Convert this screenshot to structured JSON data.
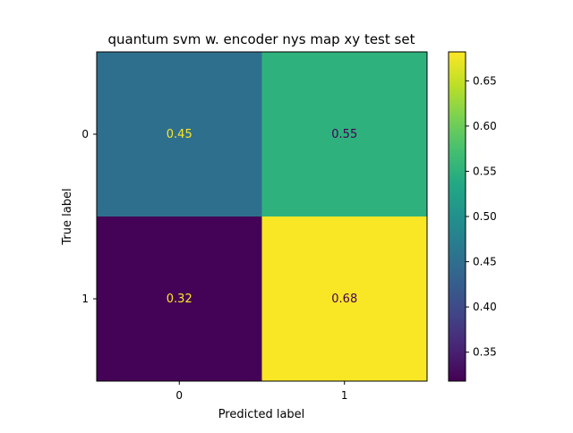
{
  "chart_data": {
    "type": "heatmap",
    "title": "quantum svm w. encoder nys map xy  test set",
    "xlabel": "Predicted label",
    "ylabel": "True label",
    "x_categories": [
      "0",
      "1"
    ],
    "y_categories": [
      "0",
      "1"
    ],
    "values": [
      [
        0.45,
        0.55
      ],
      [
        0.32,
        0.68
      ]
    ],
    "cell_labels": [
      [
        "0.45",
        "0.55"
      ],
      [
        "0.32",
        "0.68"
      ]
    ],
    "colormap": "viridis",
    "colorbar": {
      "range": [
        0.318,
        0.682
      ],
      "ticks": [
        0.35,
        0.4,
        0.45,
        0.5,
        0.55,
        0.6,
        0.65
      ],
      "tick_labels": [
        "0.35",
        "0.40",
        "0.45",
        "0.50",
        "0.55",
        "0.60",
        "0.65"
      ]
    },
    "text_colors": {
      "on_dark": "#fde725",
      "on_light": "#440154"
    },
    "grid": false
  }
}
